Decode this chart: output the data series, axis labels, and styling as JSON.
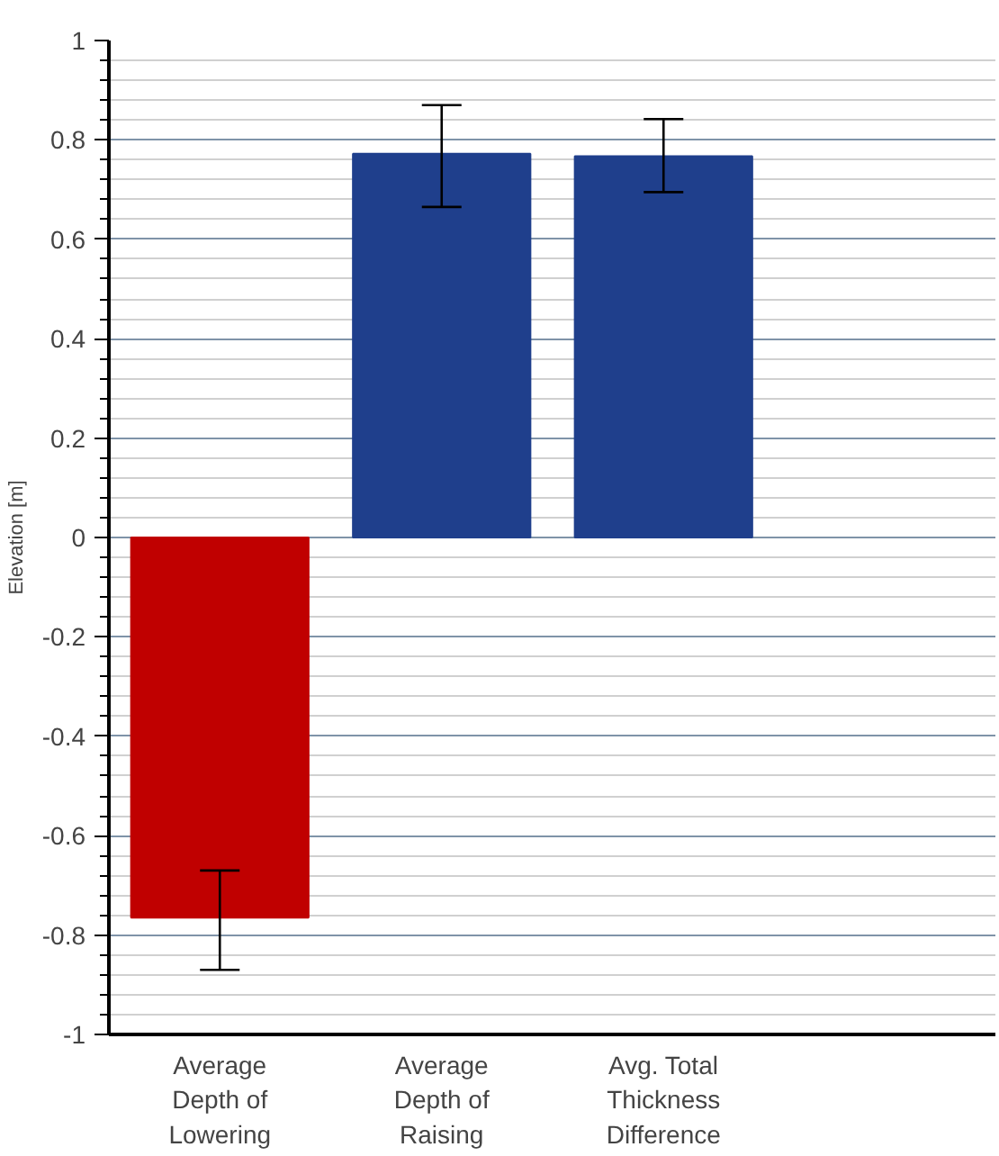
{
  "chart_data": {
    "type": "bar",
    "ylabel": "Elevation [m]",
    "categories": [
      "Average\nDepth of\nLowering",
      "Average\nDepth of\nRaising",
      "Avg. Total\nThickness\nDifference"
    ],
    "values": [
      -0.765,
      0.772,
      0.767
    ],
    "colors": [
      "#c00000",
      "#1f3f8c",
      "#1f3f8c"
    ],
    "errors": [
      [
        -0.87,
        -0.67
      ],
      [
        0.665,
        0.87
      ],
      [
        0.695,
        0.842
      ]
    ],
    "ylim": [
      -1,
      1
    ],
    "yticks": [
      -1,
      -0.8,
      -0.6,
      -0.4,
      -0.2,
      0,
      0.2,
      0.4,
      0.6,
      0.8,
      1
    ],
    "grid": "y"
  }
}
